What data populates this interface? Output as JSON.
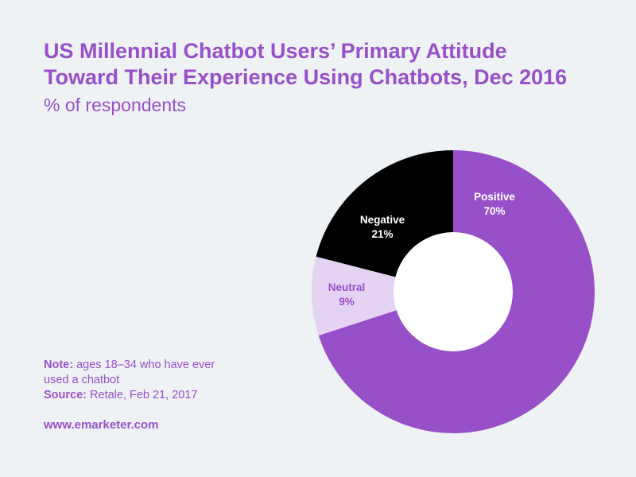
{
  "header": {
    "title": "US Millennial Chatbot Users’ Primary Attitude Toward Their Experience Using Chatbots, Dec 2016",
    "subtitle": "% of respondents"
  },
  "footer": {
    "note_label": "Note:",
    "note_text": " ages 18–34 who have ever used a chatbot",
    "source_label": "Source:",
    "source_text": " Retale, Feb 21, 2017",
    "website": "www.emarketer.com"
  },
  "chart_data": {
    "type": "pie",
    "variant": "donut",
    "title": "US Millennial Chatbot Users’ Primary Attitude Toward Their Experience Using Chatbots, Dec 2016",
    "subtitle": "% of respondents",
    "categories": [
      "Positive",
      "Neutral",
      "Negative"
    ],
    "values": [
      70,
      9,
      21
    ],
    "labels": [
      "70%",
      "9%",
      "21%"
    ],
    "colors": [
      "#9850c8",
      "#e4d3f2",
      "#000000"
    ],
    "label_colors": [
      "#ffffff",
      "#9850c8",
      "#ffffff"
    ],
    "start": "12 o'clock, clockwise"
  }
}
